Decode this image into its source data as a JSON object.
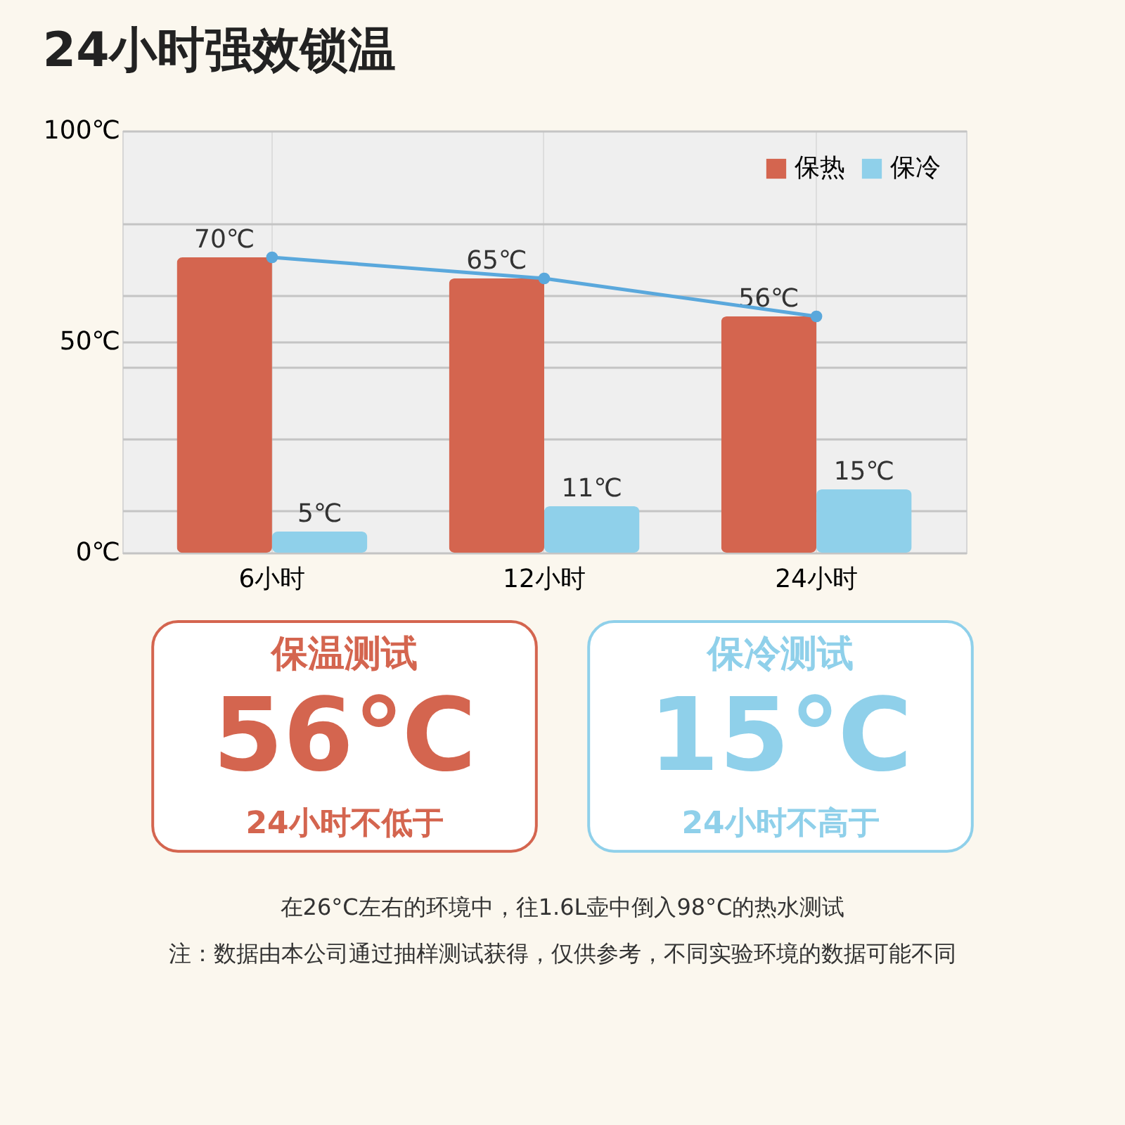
{
  "chart_data": [
    {
      "type": "bar",
      "title": "24小时强效锁温",
      "categories": [
        "6小时",
        "12小时",
        "24小时"
      ],
      "ylim": [
        0,
        100
      ],
      "yticks": [
        {
          "value": 0,
          "label": "0℃"
        },
        {
          "value": 10,
          "label": null
        },
        {
          "value": 27,
          "label": null
        },
        {
          "value": 44,
          "label": null
        },
        {
          "value": 50,
          "label": "50℃"
        },
        {
          "value": 61,
          "label": null
        },
        {
          "value": 78,
          "label": null
        },
        {
          "value": 100,
          "label": "100℃"
        }
      ],
      "grid": true,
      "legend": "top right",
      "marker": "circle",
      "series": [
        {
          "name": "保热",
          "color": "#d4654f",
          "values": [
            70,
            65,
            56
          ],
          "value_labels": [
            "70℃",
            "65℃",
            "56℃"
          ]
        },
        {
          "name": "保冷",
          "color": "#8fd0ea",
          "values": [
            5,
            11,
            15
          ],
          "value_labels": [
            "5℃",
            "11℃",
            "15℃"
          ]
        },
        {
          "type": "line",
          "color": "#5aa8dc",
          "values": [
            70,
            65,
            56
          ]
        }
      ]
    },
    {
      "type": "other",
      "categories": [
        "保温测试",
        "保冷测试"
      ],
      "value_labels": [
        "56℃",
        "15℃"
      ],
      "colors": [
        "#d4654f",
        "#8fd0ea"
      ],
      "annotations": [
        "24小时不低于",
        "24小时不高于",
        "在26°C左右的环境中，往1.6L壶中倒入98°C的热水测试",
        "注：数据由本公司通过抽样测试获得，仅供参考，不同实验环境的数据可能不同"
      ]
    }
  ]
}
